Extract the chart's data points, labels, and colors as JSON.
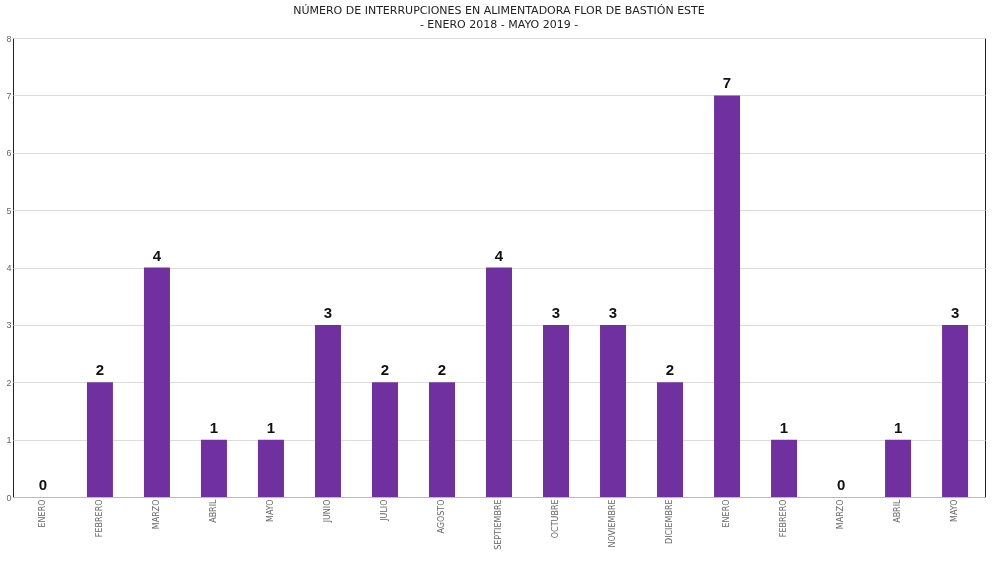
{
  "chart_data": {
    "type": "bar",
    "title": "NÚMERO DE INTERRUPCIONES EN ALIMENTADORA FLOR DE BASTIÓN ESTE",
    "subtitle": "- ENERO 2018 - MAYO 2019 -",
    "categories": [
      "ENERO",
      "FEBRERO",
      "MARZO",
      "ABRIL",
      "MAYO",
      "JUNIO",
      "JULIO",
      "AGOSTO",
      "SEPTIEMBRE",
      "OCTUBRE",
      "NOVIEMBRE",
      "DICIEMBRE",
      "ENERO",
      "FEBRERO",
      "MARZO",
      "ABRIL",
      "MAYO"
    ],
    "values": [
      0,
      2,
      4,
      1,
      1,
      3,
      2,
      2,
      4,
      3,
      3,
      2,
      7,
      1,
      0,
      1,
      3
    ],
    "color": "#7030a0",
    "ylim": [
      0,
      8
    ],
    "yticks": [
      0,
      1,
      2,
      3,
      4,
      5,
      6,
      7,
      8
    ],
    "grid": "y",
    "data_labels": true
  }
}
